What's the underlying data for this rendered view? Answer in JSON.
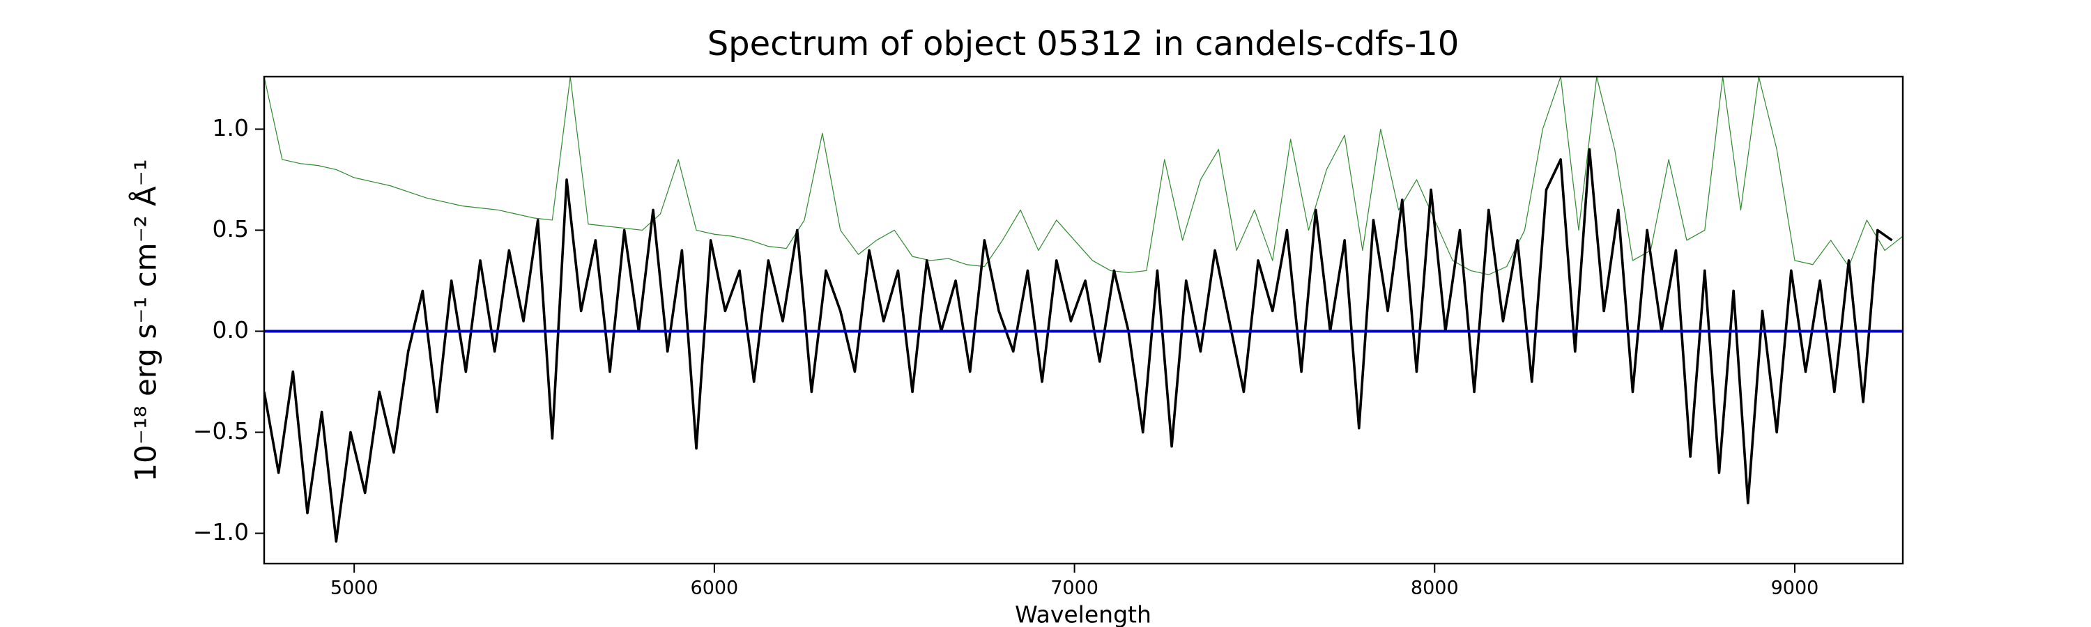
{
  "chart_data": {
    "type": "line",
    "title": "Spectrum of object 05312 in candels-cdfs-10",
    "xlabel": "Wavelength",
    "ylabel": "10⁻¹⁸ erg s⁻¹ cm⁻² Å⁻¹",
    "xlim": [
      4750,
      9300
    ],
    "ylim": [
      -1.15,
      1.26
    ],
    "xticks": [
      5000,
      6000,
      7000,
      8000,
      9000
    ],
    "yticks": [
      {
        "value": 1.0,
        "label": "1.0"
      },
      {
        "value": 0.5,
        "label": "0.5"
      },
      {
        "value": 0,
        "label": "0.0"
      },
      {
        "value": -0.5,
        "label": "−0.5"
      },
      {
        "value": -1.0,
        "label": "−1.0"
      }
    ],
    "grid": false,
    "series": [
      {
        "color": "#2e8b2e",
        "linewidth": 1.2,
        "x": [
          4750,
          4800,
          4850,
          4900,
          4950,
          5000,
          5050,
          5100,
          5150,
          5200,
          5250,
          5300,
          5350,
          5400,
          5450,
          5500,
          5550,
          5600,
          5650,
          5700,
          5750,
          5800,
          5850,
          5900,
          5950,
          6000,
          6050,
          6100,
          6150,
          6200,
          6250,
          6300,
          6350,
          6400,
          6450,
          6500,
          6550,
          6600,
          6650,
          6700,
          6750,
          6800,
          6850,
          6900,
          6950,
          7000,
          7050,
          7100,
          7150,
          7200,
          7250,
          7300,
          7350,
          7400,
          7450,
          7500,
          7550,
          7600,
          7650,
          7700,
          7750,
          7800,
          7850,
          7900,
          7950,
          8000,
          8050,
          8100,
          8150,
          8200,
          8250,
          8300,
          8350,
          8400,
          8450,
          8500,
          8550,
          8600,
          8650,
          8700,
          8750,
          8800,
          8850,
          8900,
          8950,
          9000,
          9050,
          9100,
          9150,
          9200,
          9250,
          9300
        ],
        "values": [
          1.26,
          0.85,
          0.83,
          0.82,
          0.8,
          0.76,
          0.74,
          0.72,
          0.69,
          0.66,
          0.64,
          0.62,
          0.61,
          0.6,
          0.58,
          0.56,
          0.55,
          1.26,
          0.53,
          0.52,
          0.51,
          0.5,
          0.58,
          0.85,
          0.5,
          0.48,
          0.47,
          0.45,
          0.42,
          0.41,
          0.55,
          0.98,
          0.5,
          0.38,
          0.45,
          0.5,
          0.37,
          0.35,
          0.36,
          0.33,
          0.32,
          0.45,
          0.6,
          0.4,
          0.55,
          0.45,
          0.35,
          0.3,
          0.29,
          0.3,
          0.85,
          0.45,
          0.75,
          0.9,
          0.4,
          0.6,
          0.35,
          0.95,
          0.5,
          0.8,
          0.97,
          0.4,
          1.0,
          0.6,
          0.75,
          0.55,
          0.35,
          0.3,
          0.28,
          0.32,
          0.5,
          1.0,
          1.26,
          0.5,
          1.26,
          0.9,
          0.35,
          0.4,
          0.85,
          0.45,
          0.5,
          1.26,
          0.6,
          1.26,
          0.9,
          0.35,
          0.33,
          0.45,
          0.32,
          0.55,
          0.4,
          0.47
        ]
      },
      {
        "color": "#000000",
        "linewidth": 3.6,
        "x": [
          4750,
          4790,
          4830,
          4870,
          4910,
          4950,
          4990,
          5030,
          5070,
          5110,
          5150,
          5190,
          5230,
          5270,
          5310,
          5350,
          5390,
          5430,
          5470,
          5510,
          5550,
          5590,
          5630,
          5670,
          5710,
          5750,
          5790,
          5830,
          5870,
          5910,
          5950,
          5990,
          6030,
          6070,
          6110,
          6150,
          6190,
          6230,
          6270,
          6310,
          6350,
          6390,
          6430,
          6470,
          6510,
          6550,
          6590,
          6630,
          6670,
          6710,
          6750,
          6790,
          6830,
          6870,
          6910,
          6950,
          6990,
          7030,
          7070,
          7110,
          7150,
          7190,
          7230,
          7270,
          7310,
          7350,
          7390,
          7430,
          7470,
          7510,
          7550,
          7590,
          7630,
          7670,
          7710,
          7750,
          7790,
          7830,
          7870,
          7910,
          7950,
          7990,
          8030,
          8070,
          8110,
          8150,
          8190,
          8230,
          8270,
          8310,
          8350,
          8390,
          8430,
          8470,
          8510,
          8550,
          8590,
          8630,
          8670,
          8710,
          8750,
          8790,
          8830,
          8870,
          8910,
          8950,
          8990,
          9030,
          9070,
          9110,
          9150,
          9190,
          9230,
          9270
        ],
        "values": [
          -0.3,
          -0.7,
          -0.2,
          -0.9,
          -0.4,
          -1.04,
          -0.5,
          -0.8,
          -0.3,
          -0.6,
          -0.1,
          0.2,
          -0.4,
          0.25,
          -0.2,
          0.35,
          -0.1,
          0.4,
          0.05,
          0.55,
          -0.53,
          0.75,
          0.1,
          0.45,
          -0.2,
          0.5,
          0.0,
          0.6,
          -0.1,
          0.4,
          -0.58,
          0.45,
          0.1,
          0.3,
          -0.25,
          0.35,
          0.05,
          0.5,
          -0.3,
          0.3,
          0.1,
          -0.2,
          0.4,
          0.05,
          0.3,
          -0.3,
          0.35,
          0.0,
          0.25,
          -0.2,
          0.45,
          0.1,
          -0.1,
          0.3,
          -0.25,
          0.35,
          0.05,
          0.25,
          -0.15,
          0.3,
          0.0,
          -0.5,
          0.3,
          -0.57,
          0.25,
          -0.1,
          0.4,
          0.05,
          -0.3,
          0.35,
          0.1,
          0.5,
          -0.2,
          0.6,
          0.0,
          0.45,
          -0.48,
          0.55,
          0.1,
          0.65,
          -0.2,
          0.7,
          0.0,
          0.5,
          -0.3,
          0.6,
          0.05,
          0.45,
          -0.25,
          0.7,
          0.85,
          -0.1,
          0.9,
          0.1,
          0.6,
          -0.3,
          0.5,
          0.0,
          0.4,
          -0.62,
          0.3,
          -0.7,
          0.2,
          -0.85,
          0.1,
          -0.5,
          0.3,
          -0.2,
          0.25,
          -0.3,
          0.35,
          -0.35,
          0.5,
          0.45
        ]
      },
      {
        "color": "#0000cc",
        "linewidth": 4,
        "x": [
          4750,
          9300
        ],
        "values": [
          0,
          0
        ]
      }
    ]
  }
}
